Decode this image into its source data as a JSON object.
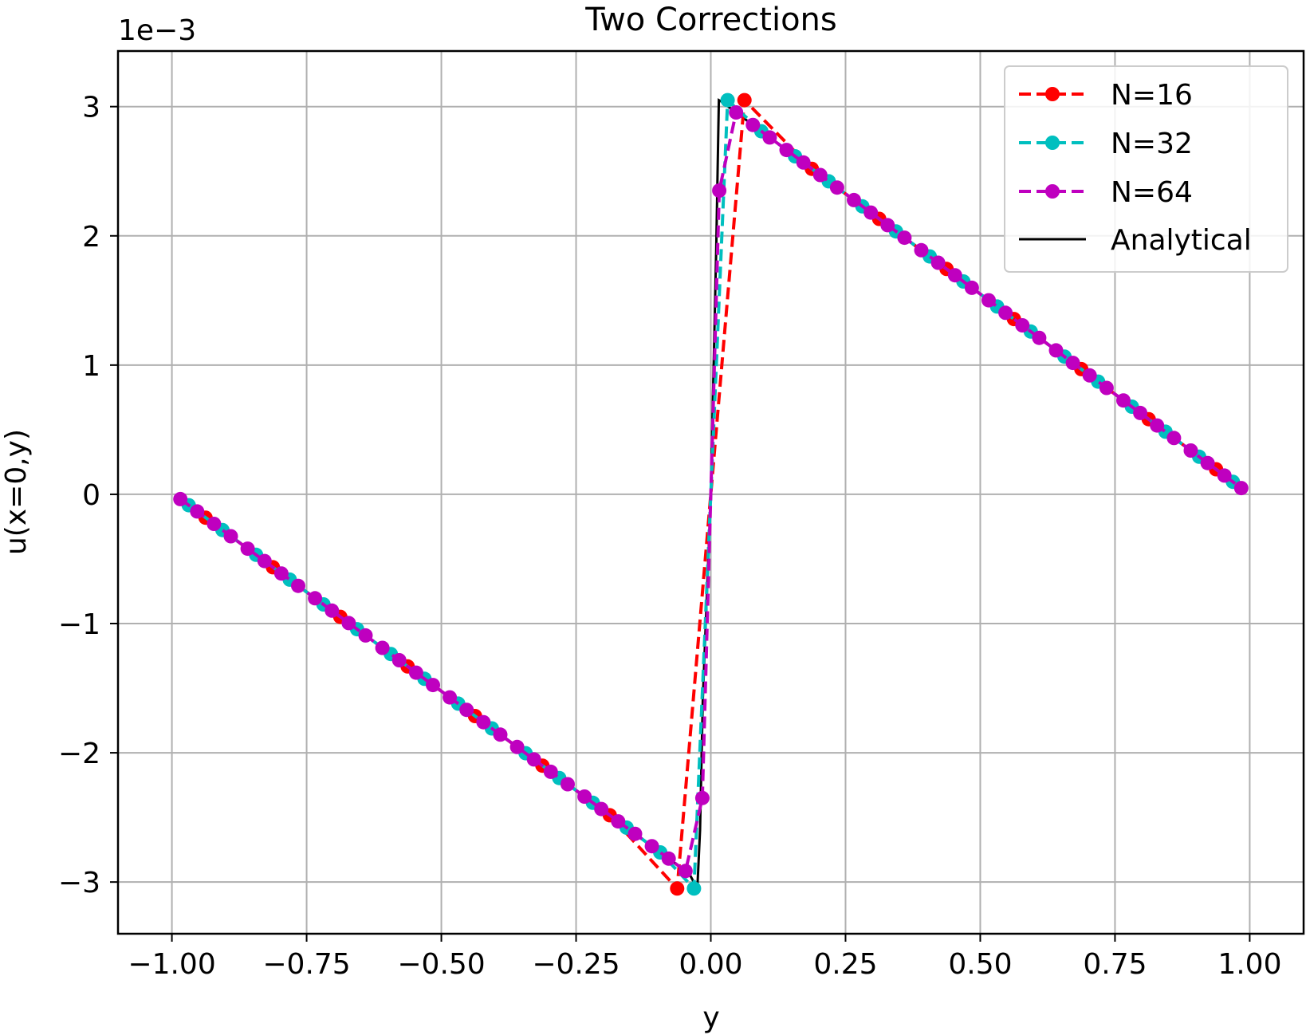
{
  "chart_data": {
    "type": "line",
    "title": "Two Corrections",
    "xlabel": "y",
    "ylabel": "u(x=0,y)",
    "y_offset_label": "1e−3",
    "xlim": [
      -1.1,
      1.1
    ],
    "ylim": [
      -3.4,
      3.43
    ],
    "x_ticks": [
      -1.0,
      -0.75,
      -0.5,
      -0.25,
      0.0,
      0.25,
      0.5,
      0.75,
      1.0
    ],
    "x_tick_labels": [
      "−1.00",
      "−0.75",
      "−0.50",
      "−0.25",
      "0.00",
      "0.25",
      "0.50",
      "0.75",
      "1.00"
    ],
    "y_ticks": [
      -3,
      -2,
      -1,
      0,
      1,
      2,
      3
    ],
    "y_tick_labels": [
      "−3",
      "−2",
      "−1",
      "0",
      "1",
      "2",
      "3"
    ],
    "grid": true,
    "legend_position": "top-right",
    "series": [
      {
        "name": "N=16",
        "color": "#ff0000",
        "style": "dashed",
        "marker": "circle",
        "n": 16
      },
      {
        "name": "N=32",
        "color": "#00bfbf",
        "style": "dashed",
        "marker": "circle",
        "n": 32
      },
      {
        "name": "N=64",
        "color": "#bf00bf",
        "style": "dashed",
        "marker": "circle",
        "n": 64
      },
      {
        "name": "Analytical",
        "color": "#000000",
        "style": "solid",
        "marker": "none"
      }
    ]
  }
}
